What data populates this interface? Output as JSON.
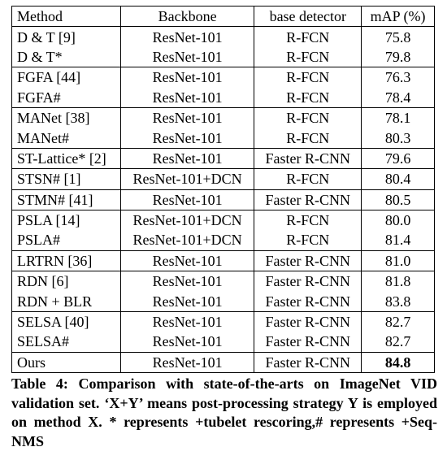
{
  "table": {
    "headers": [
      "Method",
      "Backbone",
      "base detector",
      "mAP (%)"
    ],
    "groups": [
      [
        {
          "method": "D & T [9]",
          "backbone": "ResNet-101",
          "detector": "R-FCN",
          "map": "75.8"
        },
        {
          "method": "D & T*",
          "backbone": "ResNet-101",
          "detector": "R-FCN",
          "map": "79.8"
        }
      ],
      [
        {
          "method": "FGFA [44]",
          "backbone": "ResNet-101",
          "detector": "R-FCN",
          "map": "76.3"
        },
        {
          "method": "FGFA#",
          "backbone": "ResNet-101",
          "detector": "R-FCN",
          "map": "78.4"
        }
      ],
      [
        {
          "method": "MANet [38]",
          "backbone": "ResNet-101",
          "detector": "R-FCN",
          "map": "78.1"
        },
        {
          "method": "MANet#",
          "backbone": "ResNet-101",
          "detector": "R-FCN",
          "map": "80.3"
        }
      ],
      [
        {
          "method": "ST-Lattice* [2]",
          "backbone": "ResNet-101",
          "detector": "Faster R-CNN",
          "map": "79.6"
        }
      ],
      [
        {
          "method": "STSN# [1]",
          "backbone": "ResNet-101+DCN",
          "detector": "R-FCN",
          "map": "80.4"
        }
      ],
      [
        {
          "method": "STMN# [41]",
          "backbone": "ResNet-101",
          "detector": "Faster R-CNN",
          "map": "80.5"
        }
      ],
      [
        {
          "method": "PSLA [14]",
          "backbone": "ResNet-101+DCN",
          "detector": "R-FCN",
          "map": "80.0"
        },
        {
          "method": "PSLA#",
          "backbone": "ResNet-101+DCN",
          "detector": "R-FCN",
          "map": "81.4"
        }
      ],
      [
        {
          "method": "LRTRN [36]",
          "backbone": "ResNet-101",
          "detector": "Faster R-CNN",
          "map": "81.0"
        }
      ],
      [
        {
          "method": "RDN [6]",
          "backbone": "ResNet-101",
          "detector": "Faster R-CNN",
          "map": "81.8"
        },
        {
          "method": "RDN + BLR",
          "backbone": "ResNet-101",
          "detector": "Faster R-CNN",
          "map": "83.8"
        }
      ],
      [
        {
          "method": "SELSA [40]",
          "backbone": "ResNet-101",
          "detector": "Faster R-CNN",
          "map": "82.7"
        },
        {
          "method": "SELSA#",
          "backbone": "ResNet-101",
          "detector": "Faster R-CNN",
          "map": "82.7"
        }
      ],
      [
        {
          "method": "Ours",
          "backbone": "ResNet-101",
          "detector": "Faster R-CNN",
          "map": "84.8",
          "bold": true
        }
      ]
    ]
  },
  "caption": "Table 4: Comparison with state-of-the-arts on ImageNet VID validation set. ‘X+Y’ means post-processing strategy Y is employed on method X. * represents +tubelet rescoring,# represents +Seq-NMS"
}
